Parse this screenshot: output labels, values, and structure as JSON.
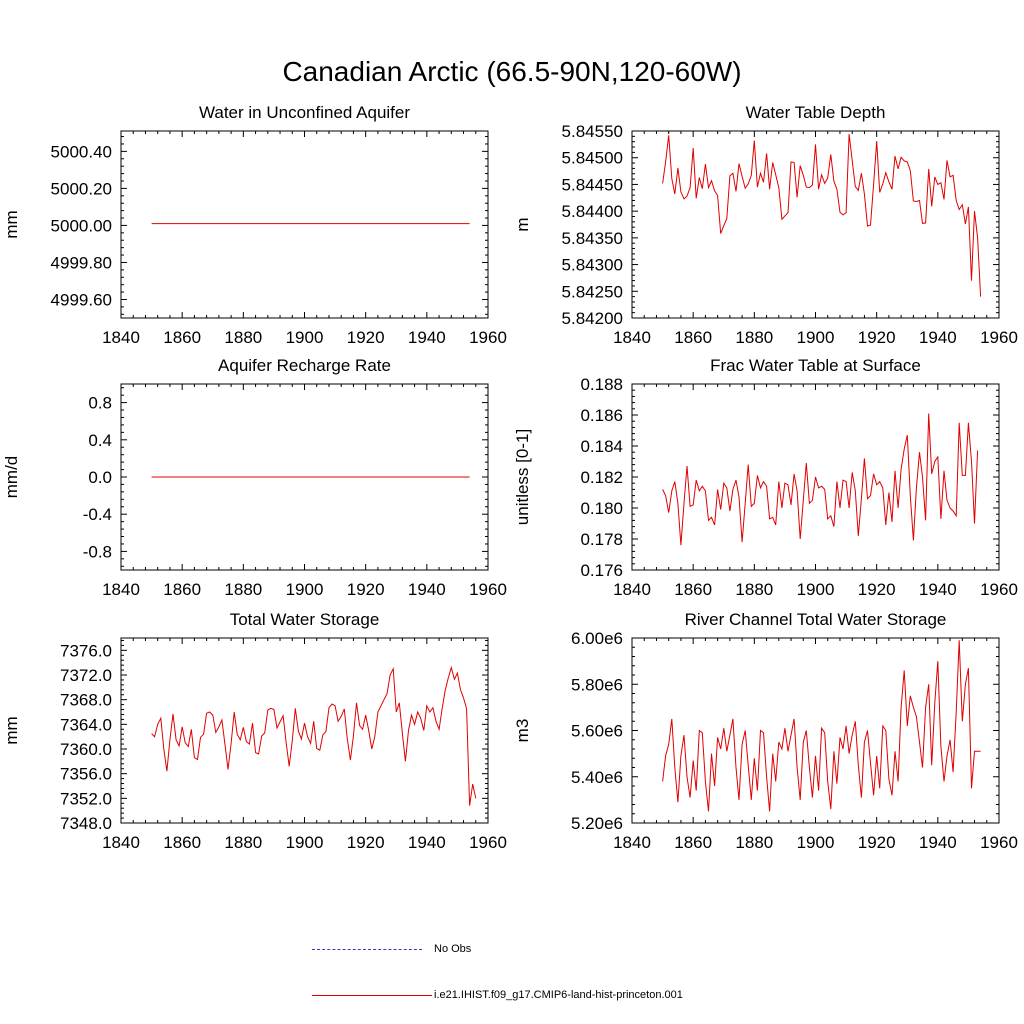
{
  "figure": {
    "title": "Canadian Arctic (66.5-90N,120-60W)"
  },
  "colors": {
    "model_line": "#e00000",
    "obs_line": "#3a3ab0",
    "axis": "#000000"
  },
  "legend": [
    {
      "label": "No Obs",
      "style": "dashed",
      "color": "#3a3ab0"
    },
    {
      "label": "i.e21.IHIST.f09_g17.CMIP6-land-hist-princeton.001",
      "style": "solid",
      "color": "#e00000"
    }
  ],
  "chart_data": [
    {
      "type": "line",
      "title": "Water in Unconfined Aquifer",
      "ylabel": "mm",
      "xlabel": "",
      "xlim": [
        1840,
        1960
      ],
      "ylim": [
        4999.5,
        5000.51
      ],
      "xticks": [
        1840,
        1860,
        1880,
        1900,
        1920,
        1940,
        1960
      ],
      "yticks": [
        4999.6,
        4999.8,
        5000.0,
        5000.2,
        5000.4
      ],
      "ytick_labels": [
        "4999.60",
        "4999.80",
        "5000.00",
        "5000.20",
        "5000.40"
      ],
      "x_start": 1850,
      "x_step": 1,
      "series": [
        {
          "values": [
            5000.01,
            5000.01
          ]
        }
      ],
      "series_x": [
        [
          1850,
          1954
        ]
      ]
    },
    {
      "type": "line",
      "title": "Water Table Depth",
      "ylabel": "m",
      "xlabel": "",
      "xlim": [
        1840,
        1960
      ],
      "ylim": [
        5.842,
        5.8455
      ],
      "xticks": [
        1840,
        1860,
        1880,
        1900,
        1920,
        1940,
        1960
      ],
      "yticks": [
        5.842,
        5.8425,
        5.843,
        5.8435,
        5.844,
        5.8445,
        5.845,
        5.8455
      ],
      "ytick_labels": [
        "5.84200",
        "5.84250",
        "5.84300",
        "5.84350",
        "5.84400",
        "5.84450",
        "5.84500",
        "5.84550"
      ],
      "x_start": 1850,
      "x_step": 1,
      "series": [
        {
          "values": [
            5.84452,
            5.84492,
            5.84542,
            5.84461,
            5.84432,
            5.84481,
            5.84436,
            5.84423,
            5.84428,
            5.84444,
            5.84518,
            5.84424,
            5.84463,
            5.84442,
            5.84488,
            5.84444,
            5.84457,
            5.84438,
            5.84429,
            5.84358,
            5.84373,
            5.84386,
            5.84466,
            5.84471,
            5.84437,
            5.84489,
            5.84465,
            5.84443,
            5.84451,
            5.84467,
            5.84532,
            5.84445,
            5.84471,
            5.84454,
            5.84508,
            5.84441,
            5.84491,
            5.84468,
            5.84444,
            5.84385,
            5.84391,
            5.84397,
            5.84492,
            5.84491,
            5.84426,
            5.84485,
            5.84467,
            5.84445,
            5.84444,
            5.84449,
            5.84525,
            5.84441,
            5.84468,
            5.84452,
            5.84462,
            5.84506,
            5.84456,
            5.84441,
            5.84398,
            5.84393,
            5.84397,
            5.84544,
            5.84495,
            5.84446,
            5.84439,
            5.84471,
            5.84432,
            5.84372,
            5.84374,
            5.8445,
            5.84531,
            5.84435,
            5.84451,
            5.84472,
            5.84455,
            5.84441,
            5.84503,
            5.84479,
            5.84501,
            5.84494,
            5.84492,
            5.84476,
            5.84419,
            5.84418,
            5.8442,
            5.84377,
            5.84378,
            5.84479,
            5.84409,
            5.84464,
            5.8445,
            5.84453,
            5.84422,
            5.84495,
            5.84464,
            5.84467,
            5.8442,
            5.84403,
            5.84412,
            5.84376,
            5.84408,
            5.8427,
            5.844,
            5.8435,
            5.8424
          ]
        }
      ]
    },
    {
      "type": "line",
      "title": "Aquifer Recharge Rate",
      "ylabel": "mm/d",
      "xlabel": "",
      "xlim": [
        1840,
        1960
      ],
      "ylim": [
        -1.0,
        1.0
      ],
      "xticks": [
        1840,
        1860,
        1880,
        1900,
        1920,
        1940,
        1960
      ],
      "yticks": [
        -0.8,
        -0.4,
        0.0,
        0.4,
        0.8
      ],
      "ytick_labels": [
        "-0.8",
        "-0.4",
        "0.0",
        "0.4",
        "0.8"
      ],
      "x_start": 1850,
      "x_step": 1,
      "series": [
        {
          "values": [
            0.0,
            0.0
          ]
        }
      ],
      "series_x": [
        [
          1850,
          1954
        ]
      ]
    },
    {
      "type": "line",
      "title": "Frac Water Table at Surface",
      "ylabel": "unitless [0-1]",
      "xlabel": "",
      "xlim": [
        1840,
        1960
      ],
      "ylim": [
        0.176,
        0.188
      ],
      "xticks": [
        1840,
        1860,
        1880,
        1900,
        1920,
        1940,
        1960
      ],
      "yticks": [
        0.176,
        0.178,
        0.18,
        0.182,
        0.184,
        0.186,
        0.188
      ],
      "ytick_labels": [
        "0.176",
        "0.178",
        "0.180",
        "0.182",
        "0.184",
        "0.186",
        "0.188"
      ],
      "x_start": 1850,
      "x_step": 1,
      "series": [
        {
          "values": [
            0.1812,
            0.1808,
            0.1797,
            0.1811,
            0.1817,
            0.1803,
            0.1776,
            0.1803,
            0.1827,
            0.1801,
            0.1802,
            0.1818,
            0.1811,
            0.1814,
            0.1811,
            0.1792,
            0.1794,
            0.1789,
            0.1812,
            0.1799,
            0.1816,
            0.1813,
            0.1798,
            0.1812,
            0.1818,
            0.1807,
            0.1778,
            0.1803,
            0.1828,
            0.1801,
            0.1803,
            0.1821,
            0.1813,
            0.1817,
            0.1814,
            0.1793,
            0.1794,
            0.1789,
            0.1817,
            0.18,
            0.1816,
            0.1815,
            0.1802,
            0.1822,
            0.1811,
            0.178,
            0.1805,
            0.1829,
            0.1803,
            0.1805,
            0.182,
            0.1813,
            0.1814,
            0.1812,
            0.1793,
            0.1795,
            0.1788,
            0.1817,
            0.18,
            0.1818,
            0.1817,
            0.18,
            0.1823,
            0.1811,
            0.1782,
            0.1806,
            0.1832,
            0.1806,
            0.1808,
            0.1822,
            0.1815,
            0.1817,
            0.1813,
            0.1789,
            0.181,
            0.1791,
            0.1824,
            0.18,
            0.1825,
            0.1838,
            0.1847,
            0.1808,
            0.1779,
            0.1813,
            0.1836,
            0.182,
            0.1792,
            0.1861,
            0.1822,
            0.183,
            0.1833,
            0.1793,
            0.1824,
            0.1805,
            0.18,
            0.1798,
            0.1795,
            0.1855,
            0.1821,
            0.1821,
            0.1855,
            0.183,
            0.179,
            0.1837
          ]
        }
      ]
    },
    {
      "type": "line",
      "title": "Total Water Storage",
      "ylabel": "mm",
      "xlabel": "",
      "xlim": [
        1840,
        1960
      ],
      "ylim": [
        7348.0,
        7378.0
      ],
      "xticks": [
        1840,
        1860,
        1880,
        1900,
        1920,
        1940,
        1960
      ],
      "yticks": [
        7348.0,
        7352.0,
        7356.0,
        7360.0,
        7364.0,
        7368.0,
        7372.0,
        7376.0
      ],
      "ytick_labels": [
        "7348.0",
        "7352.0",
        "7356.0",
        "7360.0",
        "7364.0",
        "7368.0",
        "7372.0",
        "7376.0"
      ],
      "x_start": 1850,
      "x_step": 1,
      "series": [
        {
          "values": [
            7362.5,
            7362.0,
            7364.0,
            7365.0,
            7360.0,
            7356.4,
            7361.5,
            7365.7,
            7361.5,
            7360.5,
            7363.6,
            7361.0,
            7360.4,
            7363.2,
            7358.6,
            7358.3,
            7361.9,
            7362.4,
            7365.8,
            7366.0,
            7365.5,
            7362.7,
            7363.6,
            7364.7,
            7360.7,
            7356.7,
            7360.9,
            7366.0,
            7362.4,
            7361.5,
            7363.5,
            7361.2,
            7360.8,
            7364.2,
            7359.4,
            7359.2,
            7362.1,
            7362.6,
            7366.3,
            7366.6,
            7366.4,
            7363.4,
            7364.4,
            7365.4,
            7361.1,
            7357.2,
            7361.4,
            7366.6,
            7362.9,
            7361.6,
            7364.2,
            7362.0,
            7360.9,
            7364.5,
            7360.1,
            7359.8,
            7362.3,
            7362.8,
            7366.7,
            7367.3,
            7367.0,
            7364.5,
            7365.3,
            7366.5,
            7361.6,
            7358.2,
            7362.1,
            7367.5,
            7363.8,
            7363.2,
            7365.5,
            7363.0,
            7360.0,
            7362.0,
            7366.0,
            7367.0,
            7368.0,
            7369.0,
            7372.0,
            7373.0,
            7366.0,
            7367.5,
            7362.5,
            7358.0,
            7363.0,
            7365.5,
            7364.0,
            7366.0,
            7365.0,
            7363.0,
            7367.0,
            7366.0,
            7366.7,
            7364.5,
            7363.2,
            7366.5,
            7369.5,
            7371.5,
            7373.2,
            7371.3,
            7372.3,
            7369.6,
            7368.3,
            7366.5,
            7350.8,
            7354.3,
            7352.0
          ]
        }
      ]
    },
    {
      "type": "line",
      "title": "River Channel Total Water Storage",
      "ylabel": "m3",
      "xlabel": "",
      "xlim": [
        1840,
        1960
      ],
      "ylim": [
        5200000,
        6000000
      ],
      "xticks": [
        1840,
        1860,
        1880,
        1900,
        1920,
        1940,
        1960
      ],
      "yticks": [
        5200000,
        5400000,
        5600000,
        5800000,
        6000000
      ],
      "ytick_labels": [
        "5.20e6",
        "5.40e6",
        "5.60e6",
        "5.80e6",
        "6.00e6"
      ],
      "x_start": 1850,
      "x_step": 1,
      "series": [
        {
          "values": [
            5380000,
            5490000,
            5540000,
            5650000,
            5440000,
            5290000,
            5490000,
            5580000,
            5400000,
            5310000,
            5470000,
            5340000,
            5600000,
            5590000,
            5380000,
            5250000,
            5500000,
            5360000,
            5570000,
            5520000,
            5610000,
            5510000,
            5580000,
            5650000,
            5440000,
            5300000,
            5540000,
            5600000,
            5450000,
            5300000,
            5480000,
            5340000,
            5600000,
            5590000,
            5400000,
            5250000,
            5500000,
            5380000,
            5550000,
            5520000,
            5610000,
            5510000,
            5580000,
            5650000,
            5440000,
            5300000,
            5550000,
            5600000,
            5440000,
            5310000,
            5490000,
            5340000,
            5610000,
            5590000,
            5380000,
            5260000,
            5510000,
            5370000,
            5570000,
            5520000,
            5620000,
            5500000,
            5580000,
            5640000,
            5450000,
            5310000,
            5550000,
            5600000,
            5460000,
            5320000,
            5490000,
            5350000,
            5620000,
            5600000,
            5390000,
            5320000,
            5510000,
            5380000,
            5700000,
            5860000,
            5620000,
            5750000,
            5700000,
            5660000,
            5550000,
            5440000,
            5700000,
            5800000,
            5450000,
            5720000,
            5900000,
            5530000,
            5380000,
            5490000,
            5560000,
            5420000,
            5680000,
            5990000,
            5640000,
            5800000,
            5870000,
            5350000,
            5510000,
            5510000,
            5510000
          ]
        }
      ]
    }
  ]
}
